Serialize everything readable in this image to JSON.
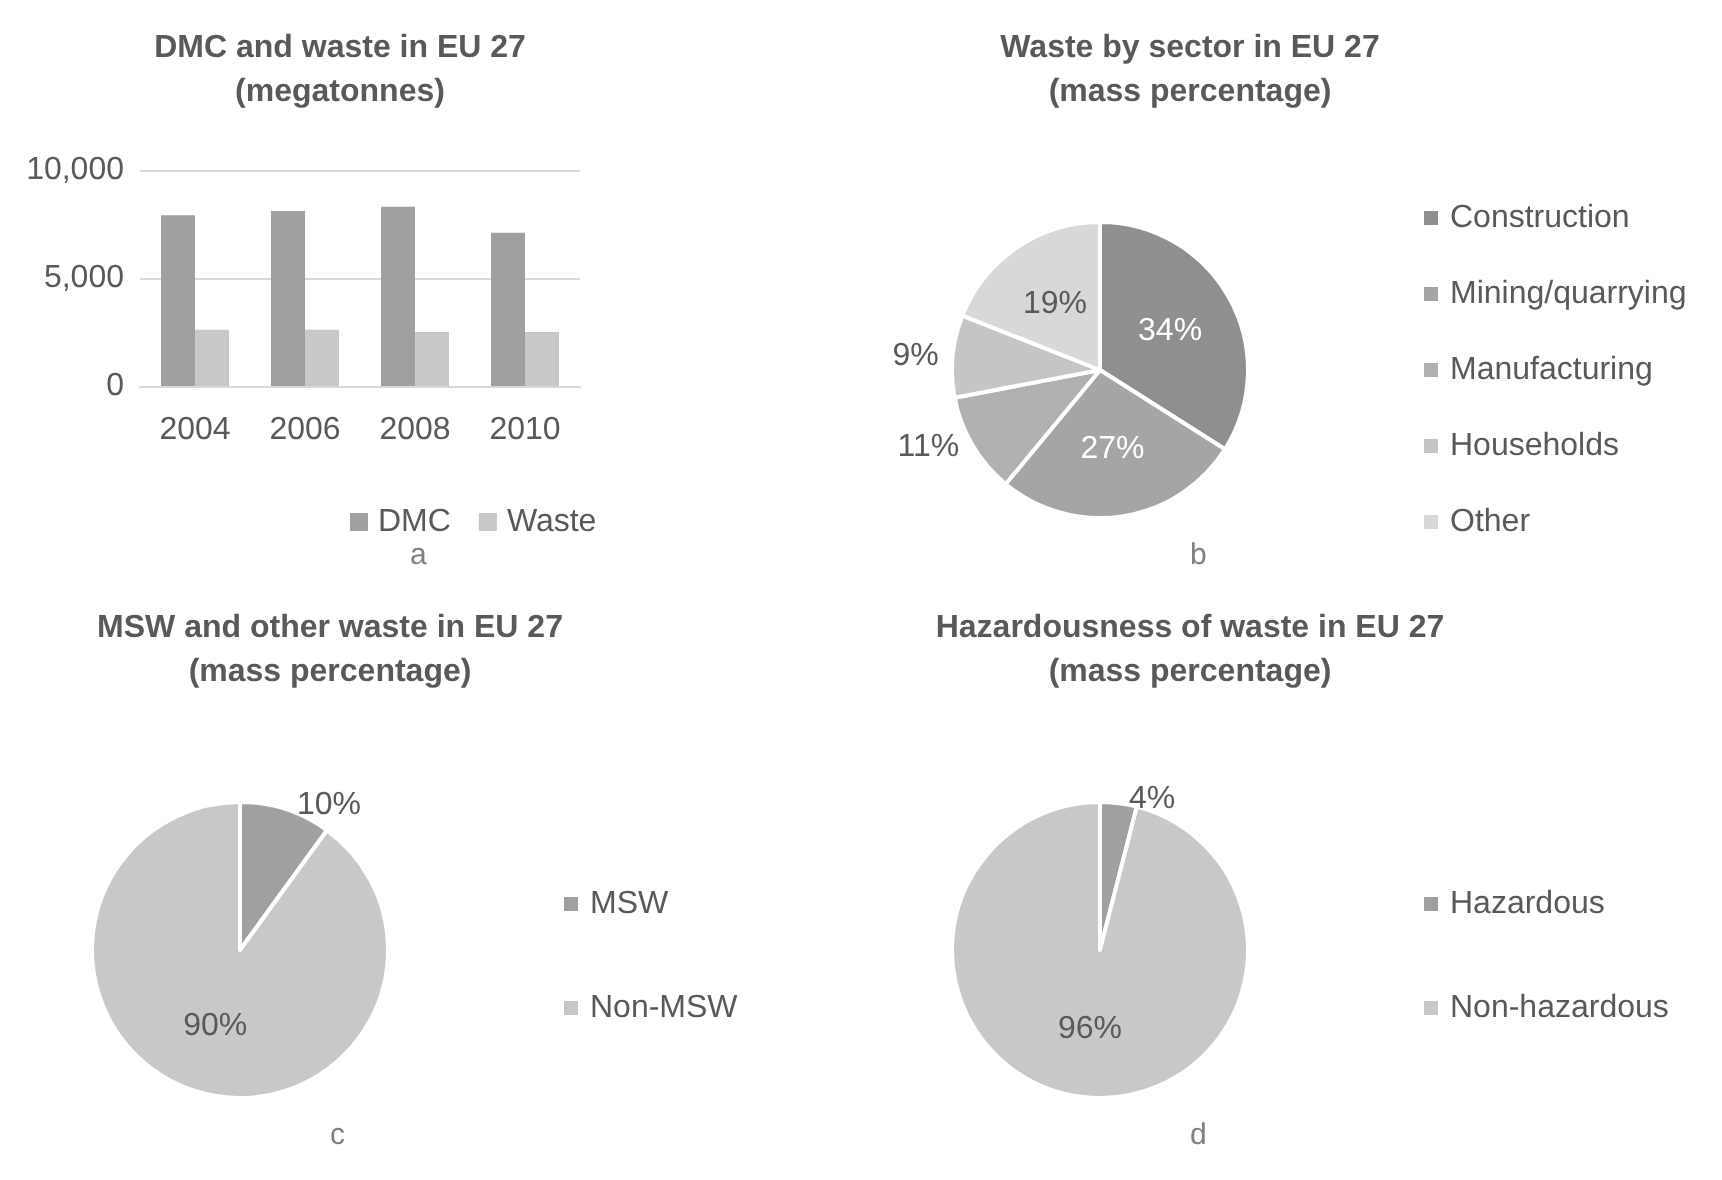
{
  "chart_data": [
    {
      "type": "bar",
      "title": "DMC and waste in EU 27\n(megatonnes)",
      "categories": [
        "2004",
        "2006",
        "2008",
        "2010"
      ],
      "series": [
        {
          "name": "DMC",
          "color": "#a0a0a2",
          "values": [
            7900,
            8100,
            8300,
            7100
          ]
        },
        {
          "name": "Waste",
          "color": "#c8c8c8",
          "values": [
            2600,
            2600,
            2500,
            2500
          ]
        }
      ],
      "ylim": [
        0,
        10000
      ],
      "yticks": [
        {
          "value": 0,
          "label": "0"
        },
        {
          "value": 5000,
          "label": "5,000"
        },
        {
          "value": 10000,
          "label": "10,000"
        }
      ],
      "grid": "y",
      "legend": "bottom",
      "annotations": [
        "a"
      ]
    },
    {
      "type": "pie",
      "title": "Waste by sector in EU 27\n(mass percentage)",
      "categories": [
        "Construction",
        "Mining/quarrying",
        "Manufacturing",
        "Households",
        "Other"
      ],
      "values": [
        34,
        27,
        11,
        9,
        19
      ],
      "value_labels": [
        "34%",
        "27%",
        "11%",
        "9%",
        "19%"
      ],
      "colors": [
        "#8f8f91",
        "#a5a5a7",
        "#b0b0b2",
        "#c5c5c7",
        "#d8d8d8"
      ],
      "legend": "right",
      "annotations": [
        "b"
      ]
    },
    {
      "type": "pie",
      "title": "MSW and other waste in EU 27\n(mass percentage)",
      "categories": [
        "MSW",
        "Non-MSW"
      ],
      "values": [
        10,
        90
      ],
      "value_labels": [
        "10%",
        "90%"
      ],
      "colors": [
        "#a0a0a0",
        "#c8c8ca"
      ],
      "legend": "right",
      "annotations": [
        "c"
      ]
    },
    {
      "type": "pie",
      "title": "Hazardousness of waste in EU 27\n(mass percentage)",
      "categories": [
        "Hazardous",
        "Non-hazardous"
      ],
      "values": [
        4,
        96
      ],
      "value_labels": [
        "4%",
        "96%"
      ],
      "colors": [
        "#a0a0a0",
        "#c8c8ca"
      ],
      "legend": "right",
      "annotations": [
        "d"
      ]
    }
  ]
}
